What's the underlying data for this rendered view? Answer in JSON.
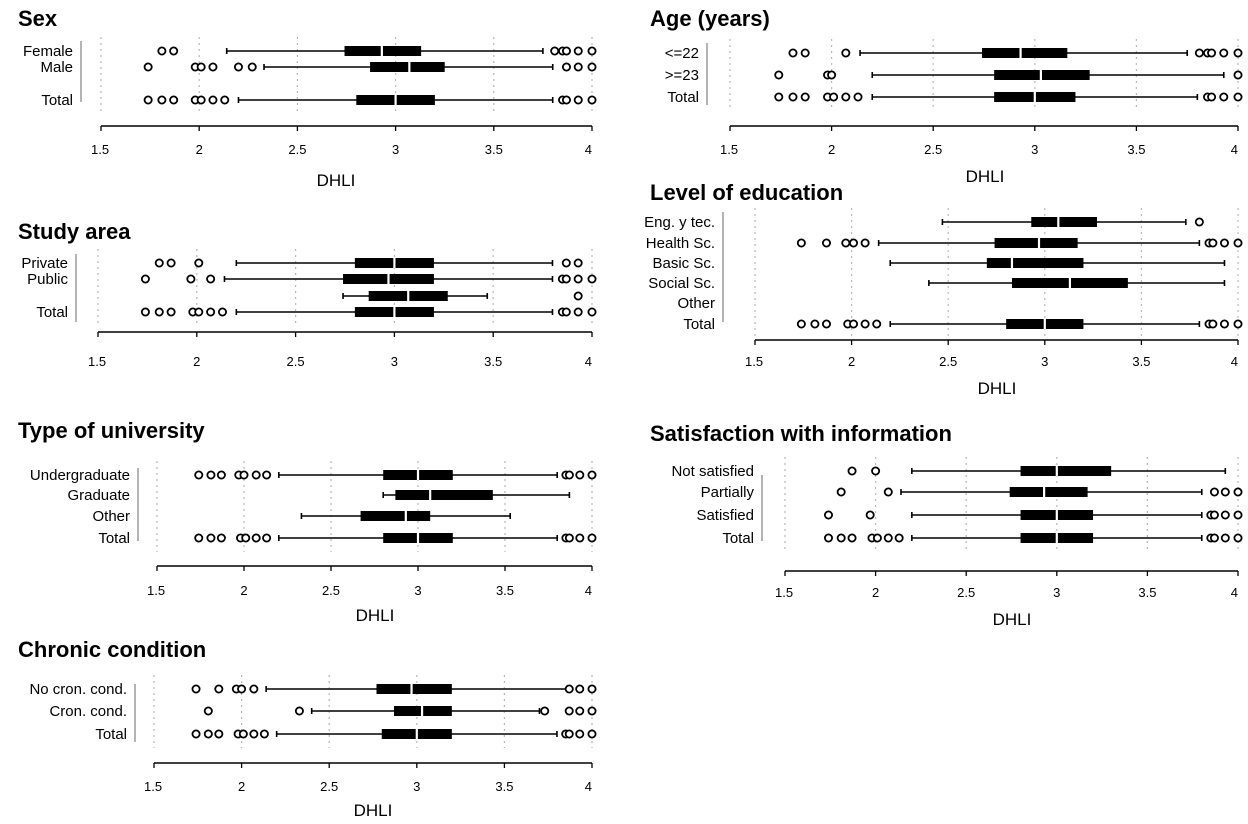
{
  "chart_data": [
    {
      "id": "sex",
      "type": "boxplot-horizontal",
      "title": "Sex",
      "xlabel": "DHLI",
      "xlim": [
        1.5,
        4
      ],
      "xticks": [
        "1.5",
        "2",
        "2.5",
        "3",
        "3.5",
        "4"
      ],
      "categories": [
        {
          "label": "Female",
          "box": {
            "whisker_low": 2.14,
            "q1": 2.74,
            "median": 2.93,
            "q3": 3.13,
            "whisker_high": 3.75
          },
          "outliers": [
            1.81,
            1.87,
            3.81,
            3.85,
            3.87,
            3.93,
            4.0
          ]
        },
        {
          "label": "Male",
          "box": {
            "whisker_low": 2.33,
            "q1": 2.87,
            "median": 3.07,
            "q3": 3.25,
            "whisker_high": 3.8
          },
          "outliers": [
            1.74,
            1.98,
            2.01,
            2.07,
            2.2,
            2.27,
            3.87,
            3.93,
            4.0
          ]
        },
        {
          "label": "Total",
          "box": {
            "whisker_low": 2.2,
            "q1": 2.8,
            "median": 3.0,
            "q3": 3.2,
            "whisker_high": 3.8
          },
          "outliers": [
            1.74,
            1.81,
            1.87,
            1.98,
            2.01,
            2.07,
            2.13,
            3.85,
            3.87,
            3.93,
            4.0
          ]
        }
      ]
    },
    {
      "id": "age",
      "type": "boxplot-horizontal",
      "title": "Age (years)",
      "xlabel": "DHLI",
      "xlim": [
        1.5,
        4
      ],
      "xticks": [
        "1.5",
        "2",
        "2.5",
        "3",
        "3.5",
        "4"
      ],
      "categories": [
        {
          "label": "<=22",
          "box": {
            "whisker_low": 2.14,
            "q1": 2.74,
            "median": 2.93,
            "q3": 3.16,
            "whisker_high": 3.75
          },
          "outliers": [
            1.81,
            1.87,
            2.07,
            3.81,
            3.85,
            3.87,
            3.93,
            4.0
          ]
        },
        {
          "label": ">=23",
          "box": {
            "whisker_low": 2.2,
            "q1": 2.8,
            "median": 3.03,
            "q3": 3.27,
            "whisker_high": 3.93
          },
          "outliers": [
            1.74,
            1.98,
            2.0,
            4.0
          ]
        },
        {
          "label": "Total",
          "box": {
            "whisker_low": 2.2,
            "q1": 2.8,
            "median": 3.0,
            "q3": 3.2,
            "whisker_high": 3.8
          },
          "outliers": [
            1.74,
            1.81,
            1.87,
            1.98,
            2.01,
            2.07,
            2.13,
            3.85,
            3.87,
            3.93,
            4.0
          ]
        }
      ]
    },
    {
      "id": "study-area",
      "type": "boxplot-horizontal",
      "title": "Study area",
      "xlabel": "",
      "xlim": [
        1.5,
        4
      ],
      "xticks": [
        "1.5",
        "2",
        "2.5",
        "3",
        "3.5",
        "4"
      ],
      "categories": [
        {
          "label": "Private",
          "box": {
            "whisker_low": 2.2,
            "q1": 2.8,
            "median": 3.0,
            "q3": 3.2,
            "whisker_high": 3.8
          },
          "outliers": [
            1.81,
            1.87,
            2.01,
            3.87,
            3.93
          ]
        },
        {
          "label": "Public",
          "box": {
            "whisker_low": 2.14,
            "q1": 2.74,
            "median": 2.97,
            "q3": 3.2,
            "whisker_high": 3.8
          },
          "outliers": [
            1.74,
            1.97,
            2.07,
            3.85,
            3.87,
            3.93,
            4.0
          ]
        },
        {
          "label": "",
          "box": {
            "whisker_low": 2.74,
            "q1": 2.87,
            "median": 3.07,
            "q3": 3.27,
            "whisker_high": 3.47
          },
          "outliers": [
            3.93
          ]
        },
        {
          "label": "Total",
          "box": {
            "whisker_low": 2.2,
            "q1": 2.8,
            "median": 3.0,
            "q3": 3.2,
            "whisker_high": 3.8
          },
          "outliers": [
            1.74,
            1.81,
            1.87,
            1.98,
            2.01,
            2.07,
            2.13,
            3.85,
            3.87,
            3.93,
            4.0
          ]
        }
      ]
    },
    {
      "id": "education",
      "type": "boxplot-horizontal",
      "title": "Level of education",
      "xlabel": "DHLI",
      "xlim": [
        1.5,
        4
      ],
      "xticks": [
        "1.5",
        "2",
        "2.5",
        "3",
        "3.5",
        "4"
      ],
      "categories": [
        {
          "label": "Eng. y tec.",
          "box": {
            "whisker_low": 2.47,
            "q1": 2.93,
            "median": 3.07,
            "q3": 3.27,
            "whisker_high": 3.73
          },
          "outliers": [
            3.8
          ]
        },
        {
          "label": "Health Sc.",
          "box": {
            "whisker_low": 2.14,
            "q1": 2.74,
            "median": 2.97,
            "q3": 3.17,
            "whisker_high": 3.8
          },
          "outliers": [
            1.74,
            1.87,
            1.97,
            2.01,
            2.07,
            3.85,
            3.87,
            3.93,
            4.0
          ]
        },
        {
          "label": "Basic Sc.",
          "box": {
            "whisker_low": 2.2,
            "q1": 2.7,
            "median": 2.83,
            "q3": 3.2,
            "whisker_high": 3.93
          },
          "outliers": []
        },
        {
          "label": "Social Sc.",
          "box": {
            "whisker_low": 2.4,
            "q1": 2.83,
            "median": 3.13,
            "q3": 3.43,
            "whisker_high": 3.93
          },
          "outliers": []
        },
        {
          "label": "Other",
          "box": null,
          "outliers": []
        },
        {
          "label": "Total",
          "box": {
            "whisker_low": 2.2,
            "q1": 2.8,
            "median": 3.0,
            "q3": 3.2,
            "whisker_high": 3.8
          },
          "outliers": [
            1.74,
            1.81,
            1.87,
            1.98,
            2.01,
            2.07,
            2.13,
            3.85,
            3.87,
            3.93,
            4.0
          ]
        }
      ]
    },
    {
      "id": "university",
      "type": "boxplot-horizontal",
      "title": "Type of university",
      "xlabel": "DHLI",
      "xlim": [
        1.5,
        4
      ],
      "xticks": [
        "1.5",
        "2",
        "2.5",
        "3",
        "3.5",
        "4"
      ],
      "categories": [
        {
          "label": "Undergraduate",
          "box": {
            "whisker_low": 2.2,
            "q1": 2.8,
            "median": 3.0,
            "q3": 3.2,
            "whisker_high": 3.8
          },
          "outliers": [
            1.74,
            1.81,
            1.87,
            1.97,
            2.0,
            2.07,
            2.13,
            3.85,
            3.87,
            3.93,
            4.0
          ]
        },
        {
          "label": "Graduate",
          "box": {
            "whisker_low": 2.8,
            "q1": 2.87,
            "median": 3.07,
            "q3": 3.43,
            "whisker_high": 3.87
          },
          "outliers": []
        },
        {
          "label": "Other",
          "box": {
            "whisker_low": 2.33,
            "q1": 2.67,
            "median": 2.93,
            "q3": 3.07,
            "whisker_high": 3.53
          },
          "outliers": []
        },
        {
          "label": "Total",
          "box": {
            "whisker_low": 2.2,
            "q1": 2.8,
            "median": 3.0,
            "q3": 3.2,
            "whisker_high": 3.8
          },
          "outliers": [
            1.74,
            1.81,
            1.87,
            1.98,
            2.01,
            2.07,
            2.13,
            3.85,
            3.87,
            3.93,
            4.0
          ]
        }
      ]
    },
    {
      "id": "satisfaction",
      "type": "boxplot-horizontal",
      "title": "Satisfaction with information",
      "xlabel": "DHLI",
      "xlim": [
        1.5,
        4
      ],
      "xticks": [
        "1.5",
        "2",
        "2.5",
        "3",
        "3.5",
        "4"
      ],
      "categories": [
        {
          "label": "Not satisfied",
          "box": {
            "whisker_low": 2.2,
            "q1": 2.8,
            "median": 3.0,
            "q3": 3.3,
            "whisker_high": 3.93
          },
          "outliers": [
            1.87,
            2.0
          ]
        },
        {
          "label": "Partially",
          "box": {
            "whisker_low": 2.14,
            "q1": 2.74,
            "median": 2.93,
            "q3": 3.17,
            "whisker_high": 3.8
          },
          "outliers": [
            1.81,
            2.07,
            3.87,
            3.93,
            4.0
          ]
        },
        {
          "label": "Satisfied",
          "box": {
            "whisker_low": 2.2,
            "q1": 2.8,
            "median": 3.0,
            "q3": 3.2,
            "whisker_high": 3.8
          },
          "outliers": [
            1.74,
            1.97,
            3.85,
            3.87,
            3.93,
            4.0
          ]
        },
        {
          "label": "Total",
          "box": {
            "whisker_low": 2.2,
            "q1": 2.8,
            "median": 3.0,
            "q3": 3.2,
            "whisker_high": 3.8
          },
          "outliers": [
            1.74,
            1.81,
            1.87,
            1.98,
            2.01,
            2.07,
            2.13,
            3.85,
            3.87,
            3.93,
            4.0
          ]
        }
      ]
    },
    {
      "id": "chronic",
      "type": "boxplot-horizontal",
      "title": "Chronic condition",
      "xlabel": "DHLI",
      "xlim": [
        1.5,
        4
      ],
      "xticks": [
        "1.5",
        "2",
        "2.5",
        "3",
        "3.5",
        "4"
      ],
      "categories": [
        {
          "label": "No cron. cond.",
          "box": {
            "whisker_low": 2.14,
            "q1": 2.77,
            "median": 2.97,
            "q3": 3.2,
            "whisker_high": 3.87
          },
          "outliers": [
            1.74,
            1.87,
            1.97,
            2.0,
            2.07,
            3.87,
            3.93,
            4.0
          ]
        },
        {
          "label": "Cron. cond.",
          "box": {
            "whisker_low": 2.4,
            "q1": 2.87,
            "median": 3.03,
            "q3": 3.2,
            "whisker_high": 3.7
          },
          "outliers": [
            1.81,
            2.33,
            3.73,
            3.87,
            3.93,
            4.0
          ]
        },
        {
          "label": "Total",
          "box": {
            "whisker_low": 2.2,
            "q1": 2.8,
            "median": 3.0,
            "q3": 3.2,
            "whisker_high": 3.8
          },
          "outliers": [
            1.74,
            1.81,
            1.87,
            1.98,
            2.01,
            2.07,
            2.13,
            3.85,
            3.87,
            3.93,
            4.0
          ]
        }
      ]
    }
  ]
}
